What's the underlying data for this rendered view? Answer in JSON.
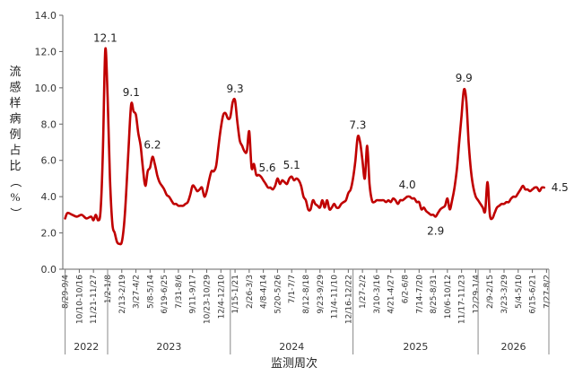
{
  "chart_data": {
    "type": "line",
    "title": "",
    "ylabel": "流感样病例占比（%）",
    "xlabel": "监测周次",
    "ylim": [
      0,
      14
    ],
    "yticks": [
      "0.0",
      "2.0",
      "4.0",
      "6.0",
      "8.0",
      "10.0",
      "12.0",
      "14.0"
    ],
    "grid": false,
    "line_color": "#c00000",
    "x_ticks": [
      {
        "week": 0,
        "label": "8/29-9/4"
      },
      {
        "week": 6,
        "label": "10/10-10/16"
      },
      {
        "week": 12,
        "label": "11/21-11/27"
      },
      {
        "week": 18,
        "label": "1/2-1/8"
      },
      {
        "week": 24,
        "label": "2/13-2/19"
      },
      {
        "week": 30,
        "label": "3/27-4/2"
      },
      {
        "week": 36,
        "label": "5/8-5/14"
      },
      {
        "week": 42,
        "label": "6/19-6/25"
      },
      {
        "week": 48,
        "label": "7/31-8/6"
      },
      {
        "week": 54,
        "label": "9/11-9/17"
      },
      {
        "week": 60,
        "label": "10/23-10/29"
      },
      {
        "week": 66,
        "label": "12/4-12/10"
      },
      {
        "week": 72,
        "label": "1/15-1/21"
      },
      {
        "week": 78,
        "label": "2/26-3/3"
      },
      {
        "week": 84,
        "label": "4/8-4/14"
      },
      {
        "week": 90,
        "label": "5/20-5/26"
      },
      {
        "week": 96,
        "label": "7/1-7/7"
      },
      {
        "week": 102,
        "label": "8/12-8/18"
      },
      {
        "week": 108,
        "label": "9/23-9/29"
      },
      {
        "week": 114,
        "label": "11/4-11/10"
      },
      {
        "week": 120,
        "label": "12/16-12/22"
      },
      {
        "week": 126,
        "label": "1/27-2/2"
      },
      {
        "week": 132,
        "label": "3/10-3/16"
      },
      {
        "week": 138,
        "label": "4/21-4/27"
      },
      {
        "week": 144,
        "label": "6/2-6/8"
      },
      {
        "week": 150,
        "label": "7/14-7/20"
      },
      {
        "week": 156,
        "label": "8/25-8/31"
      },
      {
        "week": 162,
        "label": "10/6-10/12"
      },
      {
        "week": 168,
        "label": "11/17-11/23"
      },
      {
        "week": 174,
        "label": "12/29-1/4"
      },
      {
        "week": 180,
        "label": "2/9-2/15"
      },
      {
        "week": 186,
        "label": "3/23-3/29"
      },
      {
        "week": 192,
        "label": "5/4-5/10"
      },
      {
        "week": 198,
        "label": "6/15-6/21"
      },
      {
        "week": 204,
        "label": "7/27-8/2"
      }
    ],
    "years": [
      {
        "label": "2022",
        "start": 0,
        "end": 18
      },
      {
        "label": "2023",
        "start": 18,
        "end": 70
      },
      {
        "label": "2024",
        "start": 70,
        "end": 122
      },
      {
        "label": "2025",
        "start": 122,
        "end": 175
      },
      {
        "label": "2026",
        "start": 175,
        "end": 205
      }
    ],
    "series": [
      {
        "points": [
          [
            0,
            2.8
          ],
          [
            1,
            3.1
          ],
          [
            3,
            3.0
          ],
          [
            5,
            2.9
          ],
          [
            7,
            3.0
          ],
          [
            9,
            2.8
          ],
          [
            11,
            2.9
          ],
          [
            12,
            2.7
          ],
          [
            13,
            3.0
          ],
          [
            14,
            2.7
          ],
          [
            15,
            3.2
          ],
          [
            16,
            6.5
          ],
          [
            17,
            12.1
          ],
          [
            18,
            9.5
          ],
          [
            19,
            5.0
          ],
          [
            20,
            2.5
          ],
          [
            21,
            2.0
          ],
          [
            22,
            1.5
          ],
          [
            23,
            1.4
          ],
          [
            24,
            1.5
          ],
          [
            25,
            2.5
          ],
          [
            26,
            4.5
          ],
          [
            27,
            7.0
          ],
          [
            28,
            9.1
          ],
          [
            29,
            8.7
          ],
          [
            30,
            8.5
          ],
          [
            31,
            7.5
          ],
          [
            32,
            6.8
          ],
          [
            33,
            5.5
          ],
          [
            34,
            4.6
          ],
          [
            35,
            5.4
          ],
          [
            36,
            5.6
          ],
          [
            37,
            6.2
          ],
          [
            38,
            5.8
          ],
          [
            39,
            5.2
          ],
          [
            40,
            4.8
          ],
          [
            41,
            4.6
          ],
          [
            42,
            4.4
          ],
          [
            43,
            4.1
          ],
          [
            44,
            4.0
          ],
          [
            45,
            3.8
          ],
          [
            46,
            3.6
          ],
          [
            47,
            3.6
          ],
          [
            48,
            3.5
          ],
          [
            49,
            3.5
          ],
          [
            50,
            3.5
          ],
          [
            51,
            3.6
          ],
          [
            52,
            3.7
          ],
          [
            53,
            4.1
          ],
          [
            54,
            4.6
          ],
          [
            55,
            4.5
          ],
          [
            56,
            4.3
          ],
          [
            57,
            4.4
          ],
          [
            58,
            4.5
          ],
          [
            59,
            4.0
          ],
          [
            60,
            4.3
          ],
          [
            61,
            4.9
          ],
          [
            62,
            5.4
          ],
          [
            63,
            5.4
          ],
          [
            64,
            5.7
          ],
          [
            65,
            6.8
          ],
          [
            66,
            7.8
          ],
          [
            67,
            8.5
          ],
          [
            68,
            8.6
          ],
          [
            69,
            8.3
          ],
          [
            70,
            8.4
          ],
          [
            71,
            9.2
          ],
          [
            72,
            9.3
          ],
          [
            73,
            8.1
          ],
          [
            74,
            7.1
          ],
          [
            75,
            6.8
          ],
          [
            76,
            6.5
          ],
          [
            77,
            6.5
          ],
          [
            78,
            7.6
          ],
          [
            79,
            5.6
          ],
          [
            80,
            5.8
          ],
          [
            81,
            5.2
          ],
          [
            82,
            5.2
          ],
          [
            83,
            5.1
          ],
          [
            84,
            4.9
          ],
          [
            85,
            4.7
          ],
          [
            86,
            4.5
          ],
          [
            87,
            4.5
          ],
          [
            88,
            4.4
          ],
          [
            89,
            4.6
          ],
          [
            90,
            5.0
          ],
          [
            91,
            4.7
          ],
          [
            92,
            4.9
          ],
          [
            93,
            4.8
          ],
          [
            94,
            4.7
          ],
          [
            95,
            5.0
          ],
          [
            96,
            5.1
          ],
          [
            97,
            4.9
          ],
          [
            98,
            5.0
          ],
          [
            99,
            4.9
          ],
          [
            100,
            4.6
          ],
          [
            101,
            4.0
          ],
          [
            102,
            3.8
          ],
          [
            103,
            3.3
          ],
          [
            104,
            3.3
          ],
          [
            105,
            3.8
          ],
          [
            106,
            3.6
          ],
          [
            107,
            3.5
          ],
          [
            108,
            3.4
          ],
          [
            109,
            3.8
          ],
          [
            110,
            3.4
          ],
          [
            111,
            3.8
          ],
          [
            112,
            3.3
          ],
          [
            113,
            3.4
          ],
          [
            114,
            3.6
          ],
          [
            115,
            3.4
          ],
          [
            116,
            3.4
          ],
          [
            117,
            3.6
          ],
          [
            118,
            3.7
          ],
          [
            119,
            3.8
          ],
          [
            120,
            4.2
          ],
          [
            121,
            4.4
          ],
          [
            122,
            5.0
          ],
          [
            123,
            6.0
          ],
          [
            124,
            7.3
          ],
          [
            125,
            7.0
          ],
          [
            126,
            6.0
          ],
          [
            127,
            5.0
          ],
          [
            128,
            6.8
          ],
          [
            129,
            4.7
          ],
          [
            130,
            3.8
          ],
          [
            131,
            3.7
          ],
          [
            132,
            3.8
          ],
          [
            133,
            3.8
          ],
          [
            134,
            3.8
          ],
          [
            135,
            3.8
          ],
          [
            136,
            3.7
          ],
          [
            137,
            3.8
          ],
          [
            138,
            3.7
          ],
          [
            139,
            3.9
          ],
          [
            140,
            3.8
          ],
          [
            141,
            3.6
          ],
          [
            142,
            3.8
          ],
          [
            143,
            3.8
          ],
          [
            144,
            3.9
          ],
          [
            145,
            4.0
          ],
          [
            146,
            4.0
          ],
          [
            147,
            3.9
          ],
          [
            148,
            3.9
          ],
          [
            149,
            3.7
          ],
          [
            150,
            3.7
          ],
          [
            151,
            3.3
          ],
          [
            152,
            3.4
          ],
          [
            153,
            3.2
          ],
          [
            154,
            3.1
          ],
          [
            155,
            3.0
          ],
          [
            156,
            3.0
          ],
          [
            157,
            2.9
          ],
          [
            158,
            3.1
          ],
          [
            159,
            3.3
          ],
          [
            160,
            3.4
          ],
          [
            161,
            3.5
          ],
          [
            162,
            3.9
          ],
          [
            163,
            3.3
          ],
          [
            164,
            3.8
          ],
          [
            165,
            4.5
          ],
          [
            166,
            5.5
          ],
          [
            167,
            7.0
          ],
          [
            168,
            8.5
          ],
          [
            169,
            9.9
          ],
          [
            170,
            9.3
          ],
          [
            171,
            7.0
          ],
          [
            172,
            5.4
          ],
          [
            173,
            4.5
          ],
          [
            174,
            4.0
          ],
          [
            175,
            3.8
          ],
          [
            176,
            3.6
          ],
          [
            177,
            3.4
          ],
          [
            178,
            3.2
          ],
          [
            179,
            4.8
          ],
          [
            180,
            3.0
          ],
          [
            181,
            2.8
          ],
          [
            182,
            3.1
          ],
          [
            183,
            3.4
          ],
          [
            184,
            3.5
          ],
          [
            185,
            3.6
          ],
          [
            186,
            3.6
          ],
          [
            187,
            3.7
          ],
          [
            188,
            3.7
          ],
          [
            189,
            3.9
          ],
          [
            190,
            4.0
          ],
          [
            191,
            4.0
          ],
          [
            192,
            4.2
          ],
          [
            193,
            4.4
          ],
          [
            194,
            4.6
          ],
          [
            195,
            4.4
          ],
          [
            196,
            4.4
          ],
          [
            197,
            4.3
          ],
          [
            198,
            4.4
          ],
          [
            199,
            4.5
          ],
          [
            200,
            4.5
          ],
          [
            201,
            4.3
          ],
          [
            202,
            4.5
          ],
          [
            203,
            4.5
          ]
        ]
      }
    ],
    "annotations": [
      {
        "week": 17,
        "value": 12.1,
        "label": "12.1",
        "pos": "above"
      },
      {
        "week": 28,
        "value": 9.1,
        "label": "9.1",
        "pos": "above"
      },
      {
        "week": 37,
        "value": 6.2,
        "label": "6.2",
        "pos": "above"
      },
      {
        "week": 72,
        "value": 9.3,
        "label": "9.3",
        "pos": "above"
      },
      {
        "week": 79,
        "value": 5.6,
        "label": "5.6",
        "pos": "right"
      },
      {
        "week": 96,
        "value": 5.1,
        "label": "5.1",
        "pos": "above"
      },
      {
        "week": 124,
        "value": 7.3,
        "label": "7.3",
        "pos": "above"
      },
      {
        "week": 145,
        "value": 4.0,
        "label": "4.0",
        "pos": "above"
      },
      {
        "week": 157,
        "value": 2.9,
        "label": "2.9",
        "pos": "below"
      },
      {
        "week": 169,
        "value": 9.9,
        "label": "9.9",
        "pos": "above"
      },
      {
        "week": 203,
        "value": 4.5,
        "label": "4.5",
        "pos": "right"
      }
    ]
  }
}
